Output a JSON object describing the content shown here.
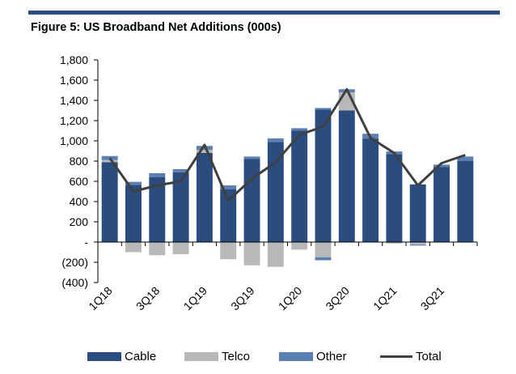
{
  "figure": {
    "title": "Figure 5: US Broadband Net Additions (000s)"
  },
  "colors": {
    "cable": "#2b4c7e",
    "telco": "#b8b8b8",
    "other": "#5b7fb0",
    "total": "#404040",
    "rule": "#2b4c7e"
  },
  "chart_data": {
    "type": "bar",
    "stacked": true,
    "title": "Figure 5: US Broadband Net Additions (000s)",
    "xlabel": "",
    "ylabel": "",
    "ylim": [
      -400,
      1800
    ],
    "yticks": [
      1800,
      1600,
      1400,
      1200,
      1000,
      800,
      600,
      400,
      200,
      0,
      -200,
      -400
    ],
    "ytick_labels": [
      "1,800",
      "1,600",
      "1,400",
      "1,200",
      "1,000",
      "800",
      "600",
      "400",
      "200",
      "-",
      "(200)",
      "(400)"
    ],
    "categories": [
      "1Q18",
      "2Q18",
      "3Q18",
      "4Q18",
      "1Q19",
      "2Q19",
      "3Q19",
      "4Q19",
      "1Q20",
      "2Q20",
      "3Q20",
      "4Q20",
      "1Q21",
      "2Q21",
      "3Q21",
      "4Q21"
    ],
    "xtick_labels": [
      "1Q18",
      "",
      "3Q18",
      "",
      "1Q19",
      "",
      "3Q19",
      "",
      "1Q20",
      "",
      "3Q20",
      "",
      "1Q21",
      "",
      "3Q21",
      ""
    ],
    "series": [
      {
        "name": "Cable",
        "values": [
          790,
          565,
          640,
          690,
          880,
          520,
          820,
          990,
          1100,
          1310,
          1300,
          1020,
          870,
          570,
          740,
          800
        ]
      },
      {
        "name": "Telco",
        "values": [
          20,
          0,
          0,
          0,
          30,
          0,
          0,
          0,
          0,
          0,
          180,
          0,
          0,
          0,
          0,
          0
        ],
        "negative": [
          0,
          -100,
          -130,
          -120,
          0,
          -170,
          -230,
          -245,
          -75,
          -150,
          0,
          0,
          -15,
          -25,
          0,
          0
        ]
      },
      {
        "name": "Other",
        "values": [
          40,
          30,
          40,
          30,
          40,
          40,
          25,
          35,
          25,
          15,
          30,
          50,
          25,
          0,
          25,
          45
        ],
        "negative": [
          0,
          0,
          0,
          0,
          0,
          0,
          0,
          0,
          0,
          -30,
          0,
          0,
          0,
          -10,
          0,
          0
        ]
      }
    ],
    "total": {
      "name": "Total",
      "values": [
        830,
        500,
        560,
        600,
        960,
        410,
        625,
        790,
        1060,
        1140,
        1510,
        1030,
        880,
        560,
        780,
        860
      ]
    },
    "grid": false,
    "legend": "bottom"
  },
  "legend": [
    "Cable",
    "Telco",
    "Other",
    "Total"
  ]
}
